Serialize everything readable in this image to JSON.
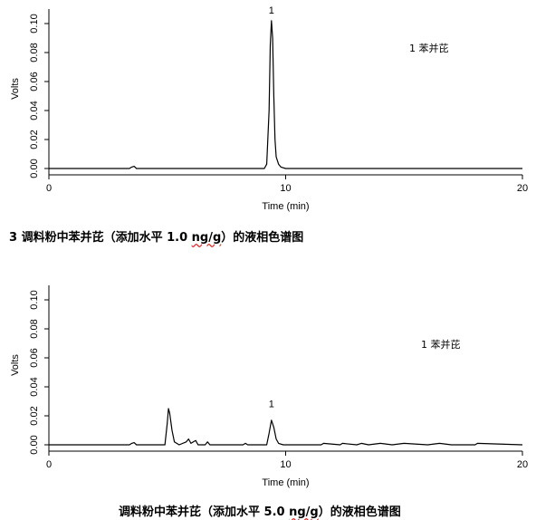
{
  "chart_data": [
    {
      "type": "line",
      "xlabel": "Time (min)",
      "ylabel": "Volts",
      "xlim": [
        0,
        20
      ],
      "ylim": [
        0.0,
        0.11
      ],
      "x_ticks": [
        "0",
        "10",
        "20"
      ],
      "y_ticks": [
        "0.00",
        "0.02",
        "0.04",
        "0.06",
        "0.08",
        "0.10"
      ],
      "legend": "1 苯并芘",
      "peak_labels": [
        {
          "text": "1",
          "x": 9.4,
          "y": 0.107
        }
      ],
      "series": [
        {
          "x": [
            0,
            3.4,
            3.5,
            3.6,
            3.7,
            9.1,
            9.2,
            9.3,
            9.35,
            9.4,
            9.45,
            9.5,
            9.55,
            9.6,
            9.7,
            9.8,
            10.0,
            20
          ],
          "values": [
            0.0,
            0.0,
            0.001,
            0.0015,
            0.0,
            0.0,
            0.003,
            0.04,
            0.085,
            0.102,
            0.09,
            0.05,
            0.02,
            0.008,
            0.003,
            0.001,
            0.0,
            0.0
          ]
        }
      ]
    },
    {
      "type": "line",
      "xlabel": "Time (min)",
      "ylabel": "Volts",
      "xlim": [
        0,
        20
      ],
      "ylim": [
        0.0,
        0.11
      ],
      "x_ticks": [
        "0",
        "10",
        "20"
      ],
      "y_ticks": [
        "0.00",
        "0.02",
        "0.04",
        "0.06",
        "0.08",
        "0.10"
      ],
      "legend": "1 苯并芘",
      "peak_labels": [
        {
          "text": "1",
          "x": 9.4,
          "y": 0.026
        }
      ],
      "series": [
        {
          "x": [
            0,
            3.4,
            3.5,
            3.6,
            3.7,
            4.9,
            5.0,
            5.05,
            5.1,
            5.2,
            5.3,
            5.5,
            5.8,
            5.9,
            6.0,
            6.1,
            6.2,
            6.3,
            6.6,
            6.7,
            6.8,
            8.2,
            8.3,
            8.4,
            9.2,
            9.3,
            9.4,
            9.5,
            9.6,
            9.7,
            9.9,
            11.5,
            11.6,
            12.3,
            12.4,
            13.0,
            13.2,
            13.5,
            14.0,
            14.5,
            15.0,
            16.0,
            16.5,
            17.0,
            18.0,
            18.1,
            20
          ],
          "values": [
            0.0,
            0.0,
            0.001,
            0.0015,
            0.0,
            0.0,
            0.015,
            0.025,
            0.022,
            0.01,
            0.002,
            0.0,
            0.002,
            0.004,
            0.001,
            0.002,
            0.003,
            0.0,
            0.0,
            0.002,
            0.0,
            0.0,
            0.001,
            0.0,
            0.0,
            0.008,
            0.017,
            0.012,
            0.004,
            0.001,
            0.0,
            0.0,
            0.001,
            0.0,
            0.001,
            0.0,
            0.001,
            0.0,
            0.001,
            0.0,
            0.001,
            0.0,
            0.001,
            0.0,
            0.0,
            0.001,
            0.0
          ]
        }
      ]
    }
  ],
  "captions": {
    "caption1_main": "3  调料粉中苯并芘（添加水平 1.0 ",
    "caption1_unit": "ng/g",
    "caption1_tail": "）的液相色谱图",
    "caption2_main": "调料粉中苯并芘（添加水平 5.0 ",
    "caption2_unit": "ng/g",
    "caption2_tail": "）的液相色谱图"
  }
}
